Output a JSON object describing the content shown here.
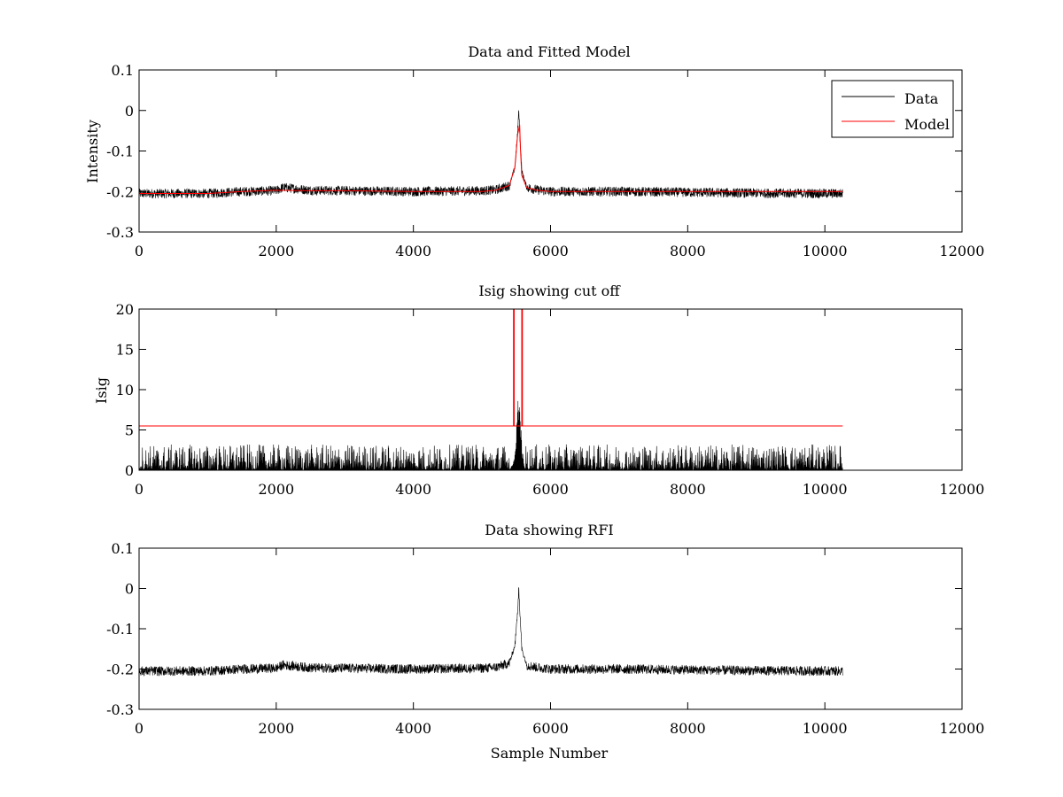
{
  "colors": {
    "data": "#000000",
    "model": "#ff0000",
    "axes": "#000000",
    "background": "#ffffff"
  },
  "chart_data": [
    {
      "type": "line",
      "title": "Data and Fitted Model",
      "xlabel": "",
      "ylabel": "Intensity",
      "xlim": [
        0,
        12000
      ],
      "ylim": [
        -0.3,
        0.1
      ],
      "xticks": [
        0,
        2000,
        4000,
        6000,
        8000,
        10000,
        12000
      ],
      "xtick_labels": [
        "0",
        "2000",
        "4000",
        "6000",
        "8000",
        "10000",
        "12000"
      ],
      "yticks": [
        -0.3,
        -0.2,
        -0.1,
        0,
        0.1
      ],
      "ytick_labels": [
        "-0.3",
        "-0.2",
        "-0.1",
        "0",
        "0.1"
      ],
      "grid": false,
      "legend": {
        "position": "top-right",
        "entries": [
          "Data",
          "Model"
        ]
      },
      "series": [
        {
          "name": "Data",
          "color": "#000000",
          "kind": "noisy",
          "n_samples": 10260,
          "noise_amplitude": 0.012,
          "spike": {
            "max": 0.002,
            "min": -0.19
          },
          "x": [
            0,
            1000,
            1500,
            2000,
            2100,
            2500,
            3000,
            4000,
            5000,
            5200,
            5400,
            5480,
            5520,
            5535,
            5550,
            5580,
            5650,
            5800,
            6000,
            7000,
            8000,
            9000,
            10260
          ],
          "y": [
            -0.205,
            -0.205,
            -0.2,
            -0.198,
            -0.19,
            -0.197,
            -0.198,
            -0.2,
            -0.198,
            -0.196,
            -0.185,
            -0.14,
            -0.05,
            0.002,
            -0.06,
            -0.15,
            -0.19,
            -0.196,
            -0.2,
            -0.2,
            -0.202,
            -0.204,
            -0.205
          ]
        },
        {
          "name": "Model",
          "color": "#ff0000",
          "kind": "line",
          "x": [
            0,
            1000,
            1500,
            2000,
            2500,
            3000,
            4000,
            5000,
            5200,
            5400,
            5480,
            5520,
            5550,
            5560,
            5580,
            5650,
            5800,
            6000,
            7000,
            8000,
            9000,
            10260
          ],
          "y": [
            -0.205,
            -0.205,
            -0.2,
            -0.197,
            -0.198,
            -0.198,
            -0.2,
            -0.2,
            -0.197,
            -0.185,
            -0.14,
            -0.06,
            -0.035,
            -0.09,
            -0.16,
            -0.19,
            -0.197,
            -0.2,
            -0.2,
            -0.2,
            -0.2,
            -0.2
          ]
        }
      ]
    },
    {
      "type": "line",
      "title": "Isig showing cut off",
      "xlabel": "",
      "ylabel": "Isig",
      "xlim": [
        0,
        12000
      ],
      "ylim": [
        0,
        20
      ],
      "xticks": [
        0,
        2000,
        4000,
        6000,
        8000,
        10000,
        12000
      ],
      "xtick_labels": [
        "0",
        "2000",
        "4000",
        "6000",
        "8000",
        "10000",
        "12000"
      ],
      "yticks": [
        0,
        5,
        10,
        15,
        20
      ],
      "ytick_labels": [
        "0",
        "5",
        "10",
        "15",
        "20"
      ],
      "grid": false,
      "series": [
        {
          "color": "#000000",
          "kind": "isig",
          "n_samples": 10260,
          "noise_amplitude": 3.2,
          "spike": {
            "max": 10.5,
            "min": 0
          },
          "x": [
            0,
            5400,
            5470,
            5510,
            5530,
            5550,
            5580,
            5620,
            10260
          ],
          "y": [
            0,
            0,
            1.5,
            7,
            10.5,
            8,
            3,
            0,
            0
          ]
        },
        {
          "color": "#ff0000",
          "kind": "line",
          "x": [
            0,
            5460,
            5460,
            5470,
            5470,
            5580,
            5580,
            5590,
            5590,
            10260
          ],
          "y": [
            5.5,
            5.5,
            20,
            20,
            5.5,
            5.5,
            20,
            20,
            5.5,
            5.5
          ]
        }
      ]
    },
    {
      "type": "line",
      "title": "Data showing RFI",
      "xlabel": "Sample Number",
      "ylabel": "",
      "xlim": [
        0,
        12000
      ],
      "ylim": [
        -0.3,
        0.1
      ],
      "xticks": [
        0,
        2000,
        4000,
        6000,
        8000,
        10000,
        12000
      ],
      "xtick_labels": [
        "0",
        "2000",
        "4000",
        "6000",
        "8000",
        "10000",
        "12000"
      ],
      "yticks": [
        -0.3,
        -0.2,
        -0.1,
        0,
        0.1
      ],
      "ytick_labels": [
        "-0.3",
        "-0.2",
        "-0.1",
        "0",
        "0.1"
      ],
      "grid": false,
      "series": [
        {
          "color": "#000000",
          "kind": "noisy",
          "n_samples": 10260,
          "noise_amplitude": 0.012,
          "spike": {
            "max": 0.002,
            "min": -0.19
          },
          "x": [
            0,
            1000,
            1500,
            2000,
            2100,
            2500,
            3000,
            4000,
            5000,
            5200,
            5400,
            5480,
            5520,
            5535,
            5550,
            5580,
            5650,
            5800,
            6000,
            7000,
            8000,
            9000,
            10260
          ],
          "y": [
            -0.205,
            -0.205,
            -0.2,
            -0.198,
            -0.19,
            -0.197,
            -0.198,
            -0.2,
            -0.198,
            -0.196,
            -0.185,
            -0.14,
            -0.05,
            0.002,
            -0.06,
            -0.15,
            -0.19,
            -0.196,
            -0.2,
            -0.2,
            -0.202,
            -0.204,
            -0.205
          ]
        }
      ]
    }
  ]
}
